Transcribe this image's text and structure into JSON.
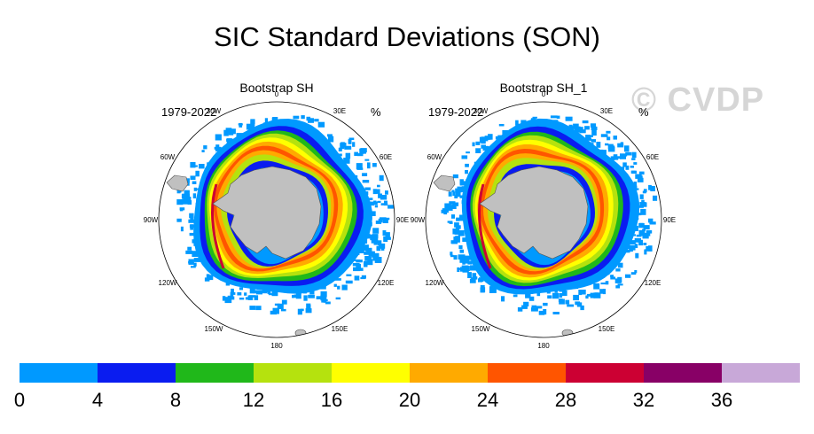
{
  "title": "SIC Standard Deviations (SON)",
  "watermark": "© CVDP",
  "panels": [
    {
      "subtitle": "Bootstrap SH",
      "period": "1979-2022",
      "units": "%"
    },
    {
      "subtitle": "Bootstrap SH_1",
      "period": "1979-2022",
      "units": "%"
    }
  ],
  "lon_labels": [
    "0",
    "30E",
    "60E",
    "90E",
    "120E",
    "150E",
    "180",
    "150W",
    "120W",
    "90W",
    "60W",
    "30W"
  ],
  "colors": {
    "ocean_white": "#ffffff",
    "land": "#c0c0c0",
    "bins": [
      "#0099ff",
      "#0a1cf0",
      "#20b81a",
      "#b5e20e",
      "#ffff00",
      "#ffaa00",
      "#ff5500",
      "#cc0033",
      "#880066",
      "#c8a8d8"
    ]
  },
  "chart_data": {
    "type": "heatmap",
    "projection": "south-polar-stereographic",
    "colorbar": {
      "ticks": [
        "0",
        "4",
        "8",
        "12",
        "16",
        "20",
        "24",
        "28",
        "32",
        "36"
      ],
      "bins": [
        [
          0,
          4
        ],
        [
          4,
          8
        ],
        [
          8,
          12
        ],
        [
          12,
          16
        ],
        [
          16,
          20
        ],
        [
          20,
          24
        ],
        [
          24,
          28
        ],
        [
          28,
          32
        ],
        [
          32,
          36
        ],
        [
          36,
          40
        ]
      ]
    }
  }
}
